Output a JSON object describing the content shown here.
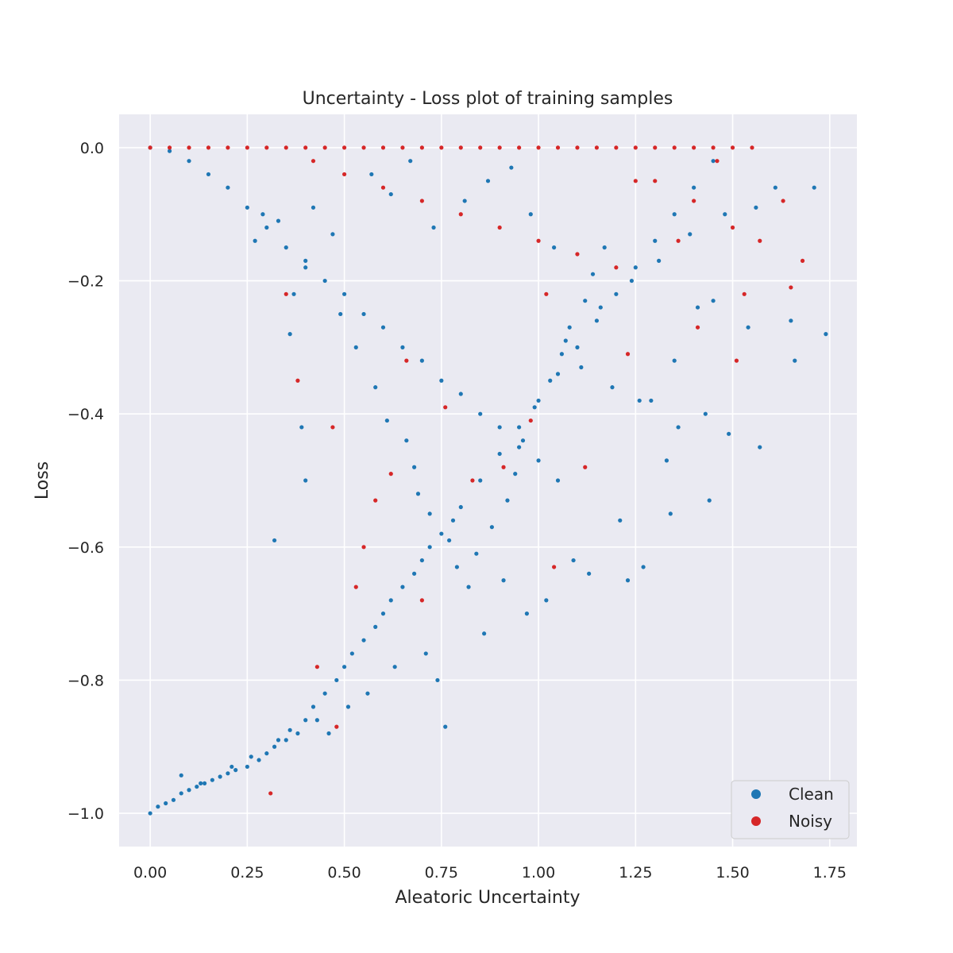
{
  "chart_data": {
    "type": "scatter",
    "title": "Uncertainty - Loss plot of training samples",
    "xlabel": "Aleatoric Uncertainty",
    "ylabel": "Loss",
    "xlim": [
      -0.08,
      1.82
    ],
    "ylim": [
      -1.05,
      0.05
    ],
    "xticks": [
      0.0,
      0.25,
      0.5,
      0.75,
      1.0,
      1.25,
      1.5,
      1.75
    ],
    "xtick_labels": [
      "0.00",
      "0.25",
      "0.50",
      "0.75",
      "1.00",
      "1.25",
      "1.50",
      "1.75"
    ],
    "yticks": [
      0.0,
      -0.2,
      -0.4,
      -0.6,
      -0.8,
      -1.0
    ],
    "ytick_labels": [
      "0.0",
      "−0.2",
      "−0.4",
      "−0.6",
      "−0.8",
      "−1.0"
    ],
    "grid": true,
    "legend_position": "bottom-right",
    "background_color": "#eaeaf2",
    "series": [
      {
        "name": "Clean",
        "color": "#1f77b4",
        "points": [
          [
            0.0,
            -1.0
          ],
          [
            0.02,
            -0.99
          ],
          [
            0.04,
            -0.985
          ],
          [
            0.06,
            -0.98
          ],
          [
            0.08,
            -0.97
          ],
          [
            0.1,
            -0.965
          ],
          [
            0.12,
            -0.96
          ],
          [
            0.14,
            -0.955
          ],
          [
            0.16,
            -0.95
          ],
          [
            0.18,
            -0.945
          ],
          [
            0.2,
            -0.94
          ],
          [
            0.22,
            -0.935
          ],
          [
            0.25,
            -0.93
          ],
          [
            0.28,
            -0.92
          ],
          [
            0.3,
            -0.91
          ],
          [
            0.32,
            -0.9
          ],
          [
            0.35,
            -0.89
          ],
          [
            0.38,
            -0.88
          ],
          [
            0.4,
            -0.86
          ],
          [
            0.42,
            -0.84
          ],
          [
            0.45,
            -0.82
          ],
          [
            0.48,
            -0.8
          ],
          [
            0.5,
            -0.78
          ],
          [
            0.52,
            -0.76
          ],
          [
            0.55,
            -0.74
          ],
          [
            0.58,
            -0.72
          ],
          [
            0.6,
            -0.7
          ],
          [
            0.62,
            -0.68
          ],
          [
            0.65,
            -0.66
          ],
          [
            0.68,
            -0.64
          ],
          [
            0.7,
            -0.62
          ],
          [
            0.72,
            -0.6
          ],
          [
            0.75,
            -0.58
          ],
          [
            0.78,
            -0.56
          ],
          [
            0.8,
            -0.54
          ],
          [
            0.85,
            -0.5
          ],
          [
            0.9,
            -0.46
          ],
          [
            0.95,
            -0.42
          ],
          [
            1.0,
            -0.38
          ],
          [
            1.05,
            -0.34
          ],
          [
            1.1,
            -0.3
          ],
          [
            1.15,
            -0.26
          ],
          [
            1.2,
            -0.22
          ],
          [
            1.25,
            -0.18
          ],
          [
            1.3,
            -0.14
          ],
          [
            1.35,
            -0.1
          ],
          [
            1.4,
            -0.06
          ],
          [
            1.45,
            -0.02
          ],
          [
            0.0,
            0.0
          ],
          [
            0.05,
            -0.005
          ],
          [
            0.1,
            -0.02
          ],
          [
            0.15,
            -0.04
          ],
          [
            0.2,
            -0.06
          ],
          [
            0.25,
            -0.09
          ],
          [
            0.3,
            -0.12
          ],
          [
            0.35,
            -0.15
          ],
          [
            0.4,
            -0.18
          ],
          [
            0.45,
            -0.2
          ],
          [
            0.5,
            -0.22
          ],
          [
            0.55,
            -0.25
          ],
          [
            0.6,
            -0.27
          ],
          [
            0.65,
            -0.3
          ],
          [
            0.7,
            -0.32
          ],
          [
            0.75,
            -0.35
          ],
          [
            0.8,
            -0.37
          ],
          [
            0.85,
            -0.4
          ],
          [
            0.9,
            -0.42
          ],
          [
            0.95,
            -0.45
          ],
          [
            1.0,
            -0.47
          ],
          [
            1.05,
            -0.5
          ],
          [
            0.08,
            -0.943
          ],
          [
            0.13,
            -0.955
          ],
          [
            0.21,
            -0.93
          ],
          [
            0.26,
            -0.915
          ],
          [
            0.33,
            -0.89
          ],
          [
            0.36,
            -0.875
          ],
          [
            0.43,
            -0.86
          ],
          [
            0.46,
            -0.88
          ],
          [
            0.51,
            -0.84
          ],
          [
            0.56,
            -0.82
          ],
          [
            0.63,
            -0.78
          ],
          [
            0.71,
            -0.76
          ],
          [
            0.74,
            -0.8
          ],
          [
            0.76,
            -0.87
          ],
          [
            0.86,
            -0.73
          ],
          [
            0.91,
            -0.65
          ],
          [
            0.97,
            -0.7
          ],
          [
            1.02,
            -0.68
          ],
          [
            1.09,
            -0.62
          ],
          [
            1.13,
            -0.64
          ],
          [
            1.21,
            -0.56
          ],
          [
            1.27,
            -0.63
          ],
          [
            1.34,
            -0.55
          ],
          [
            1.44,
            -0.53
          ],
          [
            1.57,
            -0.45
          ],
          [
            1.49,
            -0.43
          ],
          [
            1.43,
            -0.4
          ],
          [
            1.36,
            -0.42
          ],
          [
            1.26,
            -0.38
          ],
          [
            1.19,
            -0.36
          ],
          [
            1.11,
            -0.33
          ],
          [
            1.07,
            -0.29
          ],
          [
            1.16,
            -0.24
          ],
          [
            1.24,
            -0.2
          ],
          [
            1.31,
            -0.17
          ],
          [
            1.39,
            -0.13
          ],
          [
            1.48,
            -0.1
          ],
          [
            1.56,
            -0.09
          ],
          [
            1.61,
            -0.06
          ],
          [
            1.71,
            -0.06
          ],
          [
            1.74,
            -0.28
          ],
          [
            1.66,
            -0.32
          ],
          [
            1.65,
            -0.26
          ],
          [
            1.54,
            -0.27
          ],
          [
            1.41,
            -0.24
          ],
          [
            1.35,
            -0.32
          ],
          [
            1.29,
            -0.38
          ],
          [
            1.45,
            -0.23
          ],
          [
            1.23,
            -0.65
          ],
          [
            1.33,
            -0.47
          ],
          [
            0.37,
            -0.22
          ],
          [
            0.4,
            -0.17
          ],
          [
            0.32,
            -0.59
          ],
          [
            0.4,
            -0.5
          ],
          [
            0.39,
            -0.42
          ],
          [
            0.36,
            -0.28
          ],
          [
            0.29,
            -0.1
          ],
          [
            0.27,
            -0.14
          ],
          [
            0.33,
            -0.11
          ],
          [
            0.42,
            -0.09
          ],
          [
            0.47,
            -0.13
          ],
          [
            0.49,
            -0.25
          ],
          [
            0.53,
            -0.3
          ],
          [
            0.58,
            -0.36
          ],
          [
            0.61,
            -0.41
          ],
          [
            0.66,
            -0.44
          ],
          [
            0.68,
            -0.48
          ],
          [
            0.69,
            -0.52
          ],
          [
            0.72,
            -0.55
          ],
          [
            0.77,
            -0.59
          ],
          [
            0.79,
            -0.63
          ],
          [
            0.82,
            -0.66
          ],
          [
            0.84,
            -0.61
          ],
          [
            0.88,
            -0.57
          ],
          [
            0.92,
            -0.53
          ],
          [
            0.94,
            -0.49
          ],
          [
            0.96,
            -0.44
          ],
          [
            0.99,
            -0.39
          ],
          [
            1.03,
            -0.35
          ],
          [
            1.06,
            -0.31
          ],
          [
            1.08,
            -0.27
          ],
          [
            1.12,
            -0.23
          ],
          [
            1.14,
            -0.19
          ],
          [
            1.17,
            -0.15
          ],
          [
            0.73,
            -0.12
          ],
          [
            0.81,
            -0.08
          ],
          [
            0.87,
            -0.05
          ],
          [
            0.93,
            -0.03
          ],
          [
            0.98,
            -0.1
          ],
          [
            1.04,
            -0.15
          ],
          [
            0.57,
            -0.04
          ],
          [
            0.62,
            -0.07
          ],
          [
            0.67,
            -0.02
          ]
        ]
      },
      {
        "name": "Noisy",
        "color": "#d62728",
        "points": [
          [
            0.0,
            0.0
          ],
          [
            0.05,
            0.0
          ],
          [
            0.1,
            0.0
          ],
          [
            0.15,
            0.0
          ],
          [
            0.2,
            0.0
          ],
          [
            0.25,
            0.0
          ],
          [
            0.3,
            0.0
          ],
          [
            0.35,
            0.0
          ],
          [
            0.4,
            0.0
          ],
          [
            0.45,
            0.0
          ],
          [
            0.5,
            0.0
          ],
          [
            0.55,
            0.0
          ],
          [
            0.6,
            0.0
          ],
          [
            0.65,
            0.0
          ],
          [
            0.7,
            0.0
          ],
          [
            0.75,
            0.0
          ],
          [
            0.8,
            0.0
          ],
          [
            0.85,
            0.0
          ],
          [
            0.9,
            0.0
          ],
          [
            0.95,
            0.0
          ],
          [
            1.0,
            0.0
          ],
          [
            1.05,
            0.0
          ],
          [
            1.1,
            0.0
          ],
          [
            1.15,
            0.0
          ],
          [
            1.2,
            0.0
          ],
          [
            1.25,
            0.0
          ],
          [
            1.3,
            0.0
          ],
          [
            1.35,
            0.0
          ],
          [
            1.4,
            0.0
          ],
          [
            1.45,
            0.0
          ],
          [
            1.5,
            0.0
          ],
          [
            1.55,
            0.0
          ],
          [
            0.42,
            -0.02
          ],
          [
            0.5,
            -0.04
          ],
          [
            0.6,
            -0.06
          ],
          [
            0.7,
            -0.08
          ],
          [
            0.8,
            -0.1
          ],
          [
            0.9,
            -0.12
          ],
          [
            1.0,
            -0.14
          ],
          [
            1.1,
            -0.16
          ],
          [
            1.2,
            -0.18
          ],
          [
            1.3,
            -0.05
          ],
          [
            1.4,
            -0.08
          ],
          [
            1.5,
            -0.12
          ],
          [
            1.57,
            -0.14
          ],
          [
            1.63,
            -0.08
          ],
          [
            1.68,
            -0.17
          ],
          [
            1.65,
            -0.21
          ],
          [
            1.53,
            -0.22
          ],
          [
            1.51,
            -0.32
          ],
          [
            1.41,
            -0.27
          ],
          [
            1.23,
            -0.31
          ],
          [
            1.02,
            -0.22
          ],
          [
            0.98,
            -0.41
          ],
          [
            0.91,
            -0.48
          ],
          [
            0.83,
            -0.5
          ],
          [
            0.76,
            -0.39
          ],
          [
            0.62,
            -0.49
          ],
          [
            0.55,
            -0.6
          ],
          [
            0.7,
            -0.68
          ],
          [
            1.04,
            -0.63
          ],
          [
            0.47,
            -0.42
          ],
          [
            0.35,
            -0.22
          ],
          [
            0.38,
            -0.35
          ],
          [
            0.43,
            -0.78
          ],
          [
            0.48,
            -0.87
          ],
          [
            0.31,
            -0.97
          ],
          [
            0.53,
            -0.66
          ],
          [
            0.58,
            -0.53
          ],
          [
            0.66,
            -0.32
          ],
          [
            1.12,
            -0.48
          ],
          [
            1.25,
            -0.05
          ],
          [
            1.36,
            -0.14
          ],
          [
            1.46,
            -0.02
          ]
        ]
      }
    ]
  }
}
